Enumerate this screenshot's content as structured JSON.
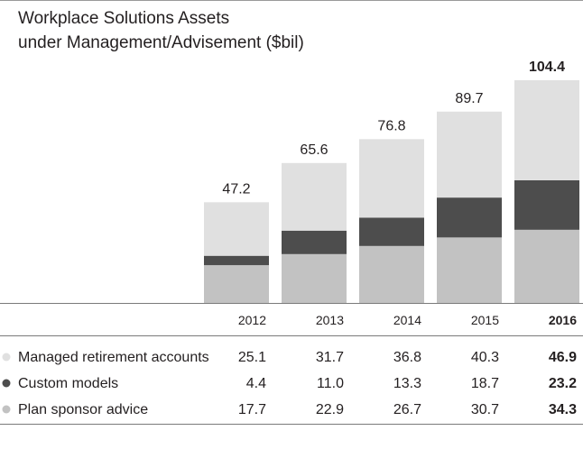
{
  "chart_data": {
    "type": "bar",
    "stacked": true,
    "title_line1": "Workplace Solutions Assets",
    "title_line2": "under Management/Advisement ($bil)",
    "categories": [
      "2012",
      "2013",
      "2014",
      "2015",
      "2016"
    ],
    "totals": [
      "47.2",
      "65.6",
      "76.8",
      "89.7",
      "104.4"
    ],
    "highlight_index": 4,
    "series": [
      {
        "name": "Managed retirement accounts",
        "color": "#e0e0e0",
        "values": [
          25.1,
          31.7,
          36.8,
          40.3,
          46.9
        ]
      },
      {
        "name": "Custom models",
        "color": "#4d4d4d",
        "values": [
          4.4,
          11.0,
          13.3,
          18.7,
          23.2
        ]
      },
      {
        "name": "Plan sponsor advice",
        "color": "#c2c2c2",
        "values": [
          17.7,
          22.9,
          26.7,
          30.7,
          34.3
        ]
      }
    ],
    "ylim": [
      0,
      104.4
    ],
    "legend": "bottom-table"
  }
}
